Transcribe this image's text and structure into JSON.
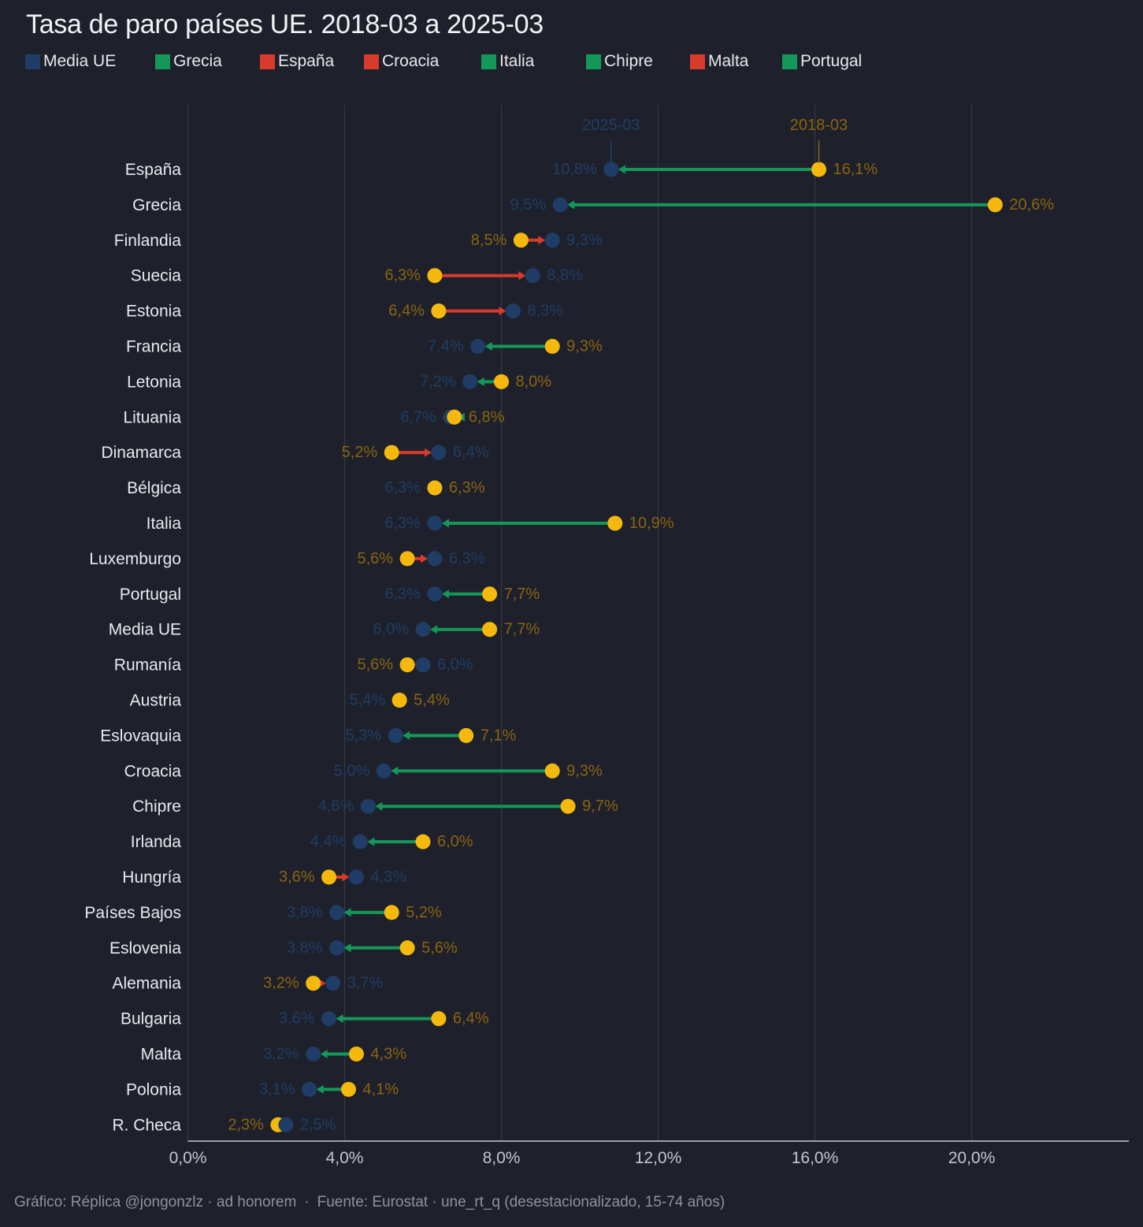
{
  "title": "Tasa de paro países UE. 2018-03 a 2025-03",
  "legend": [
    {
      "label": "Media UE",
      "color": "#1f3d66"
    },
    {
      "label": "Grecia",
      "color": "#14985a"
    },
    {
      "label": "España",
      "color": "#d83a2c"
    },
    {
      "label": "Croacia",
      "color": "#d83a2c"
    },
    {
      "label": "Italia",
      "color": "#14985a"
    },
    {
      "label": "Chipre",
      "color": "#14985a"
    },
    {
      "label": "Malta",
      "color": "#d83a2c"
    },
    {
      "label": "Portugal",
      "color": "#14985a"
    }
  ],
  "footer": {
    "credit": "Gráfico: Réplica @jongonzlz · ad honorem",
    "separator": "·",
    "source": "Fuente: Eurostat · une_rt_q (desestacionalizado, 15-74 años)"
  },
  "colors": {
    "start_dot": "#f5b90e",
    "end_dot": "#1f3d66",
    "decrease_arrow": "#14985a",
    "increase_arrow": "#d83a2c",
    "start_label": "#8a6410",
    "end_label": "#1f3d66",
    "country_label": "#e9e9ee",
    "grid": "#343845",
    "axis": "#c9c9cf",
    "tick_label": "#c6c6cc"
  },
  "chart_data": {
    "type": "dumbbell",
    "title": "Tasa de paro países UE. 2018-03 a 2025-03",
    "series": [
      {
        "name": "2018-03",
        "color": "#f5b90e"
      },
      {
        "name": "2025-03",
        "color": "#1f3d66"
      }
    ],
    "xlim": [
      0,
      24
    ],
    "xticks": [
      0,
      4,
      8,
      12,
      16,
      20
    ],
    "xtick_labels": [
      "0,0%",
      "4,0%",
      "8,0%",
      "12,0%",
      "16,0%",
      "20,0%"
    ],
    "grid": "vertical",
    "annotation_row": "España",
    "rows": [
      {
        "country": "España",
        "start": 16.1,
        "end": 10.8,
        "start_label": "16,1%",
        "end_label": "10,8%"
      },
      {
        "country": "Grecia",
        "start": 20.6,
        "end": 9.5,
        "start_label": "20,6%",
        "end_label": "9,5%"
      },
      {
        "country": "Finlandia",
        "start": 8.5,
        "end": 9.3,
        "start_label": "8,5%",
        "end_label": "9,3%"
      },
      {
        "country": "Suecia",
        "start": 6.3,
        "end": 8.8,
        "start_label": "6,3%",
        "end_label": "8,8%"
      },
      {
        "country": "Estonia",
        "start": 6.4,
        "end": 8.3,
        "start_label": "6,4%",
        "end_label": "8,3%"
      },
      {
        "country": "Francia",
        "start": 9.3,
        "end": 7.4,
        "start_label": "9,3%",
        "end_label": "7,4%"
      },
      {
        "country": "Letonia",
        "start": 8.0,
        "end": 7.2,
        "start_label": "8,0%",
        "end_label": "7,2%"
      },
      {
        "country": "Lituania",
        "start": 6.8,
        "end": 6.7,
        "start_label": "6,8%",
        "end_label": "6,7%"
      },
      {
        "country": "Dinamarca",
        "start": 5.2,
        "end": 6.4,
        "start_label": "5,2%",
        "end_label": "6,4%"
      },
      {
        "country": "Bélgica",
        "start": 6.3,
        "end": 6.3,
        "start_label": "6,3%",
        "end_label": "6,3%"
      },
      {
        "country": "Italia",
        "start": 10.9,
        "end": 6.3,
        "start_label": "10,9%",
        "end_label": "6,3%"
      },
      {
        "country": "Luxemburgo",
        "start": 5.6,
        "end": 6.3,
        "start_label": "5,6%",
        "end_label": "6,3%"
      },
      {
        "country": "Portugal",
        "start": 7.7,
        "end": 6.3,
        "start_label": "7,7%",
        "end_label": "6,3%"
      },
      {
        "country": "Media UE",
        "start": 7.7,
        "end": 6.0,
        "start_label": "7,7%",
        "end_label": "6,0%"
      },
      {
        "country": "Rumanía",
        "start": 5.6,
        "end": 6.0,
        "start_label": "5,6%",
        "end_label": "6,0%"
      },
      {
        "country": "Austria",
        "start": 5.4,
        "end": 5.4,
        "start_label": "5,4%",
        "end_label": "5,4%"
      },
      {
        "country": "Eslovaquia",
        "start": 7.1,
        "end": 5.3,
        "start_label": "7,1%",
        "end_label": "5,3%"
      },
      {
        "country": "Croacia",
        "start": 9.3,
        "end": 5.0,
        "start_label": "9,3%",
        "end_label": "5,0%"
      },
      {
        "country": "Chipre",
        "start": 9.7,
        "end": 4.6,
        "start_label": "9,7%",
        "end_label": "4,6%"
      },
      {
        "country": "Irlanda",
        "start": 6.0,
        "end": 4.4,
        "start_label": "6,0%",
        "end_label": "4,4%"
      },
      {
        "country": "Hungría",
        "start": 3.6,
        "end": 4.3,
        "start_label": "3,6%",
        "end_label": "4,3%"
      },
      {
        "country": "Países Bajos",
        "start": 5.2,
        "end": 3.8,
        "start_label": "5,2%",
        "end_label": "3,8%"
      },
      {
        "country": "Eslovenia",
        "start": 5.6,
        "end": 3.8,
        "start_label": "5,6%",
        "end_label": "3,8%"
      },
      {
        "country": "Alemania",
        "start": 3.2,
        "end": 3.7,
        "start_label": "3,2%",
        "end_label": "3,7%"
      },
      {
        "country": "Bulgaria",
        "start": 6.4,
        "end": 3.6,
        "start_label": "6,4%",
        "end_label": "3,6%"
      },
      {
        "country": "Malta",
        "start": 4.3,
        "end": 3.2,
        "start_label": "4,3%",
        "end_label": "3,2%"
      },
      {
        "country": "Polonia",
        "start": 4.1,
        "end": 3.1,
        "start_label": "4,1%",
        "end_label": "3,1%"
      },
      {
        "country": "R. Checa",
        "start": 2.3,
        "end": 2.5,
        "start_label": "2,3%",
        "end_label": "2,5%"
      }
    ]
  }
}
